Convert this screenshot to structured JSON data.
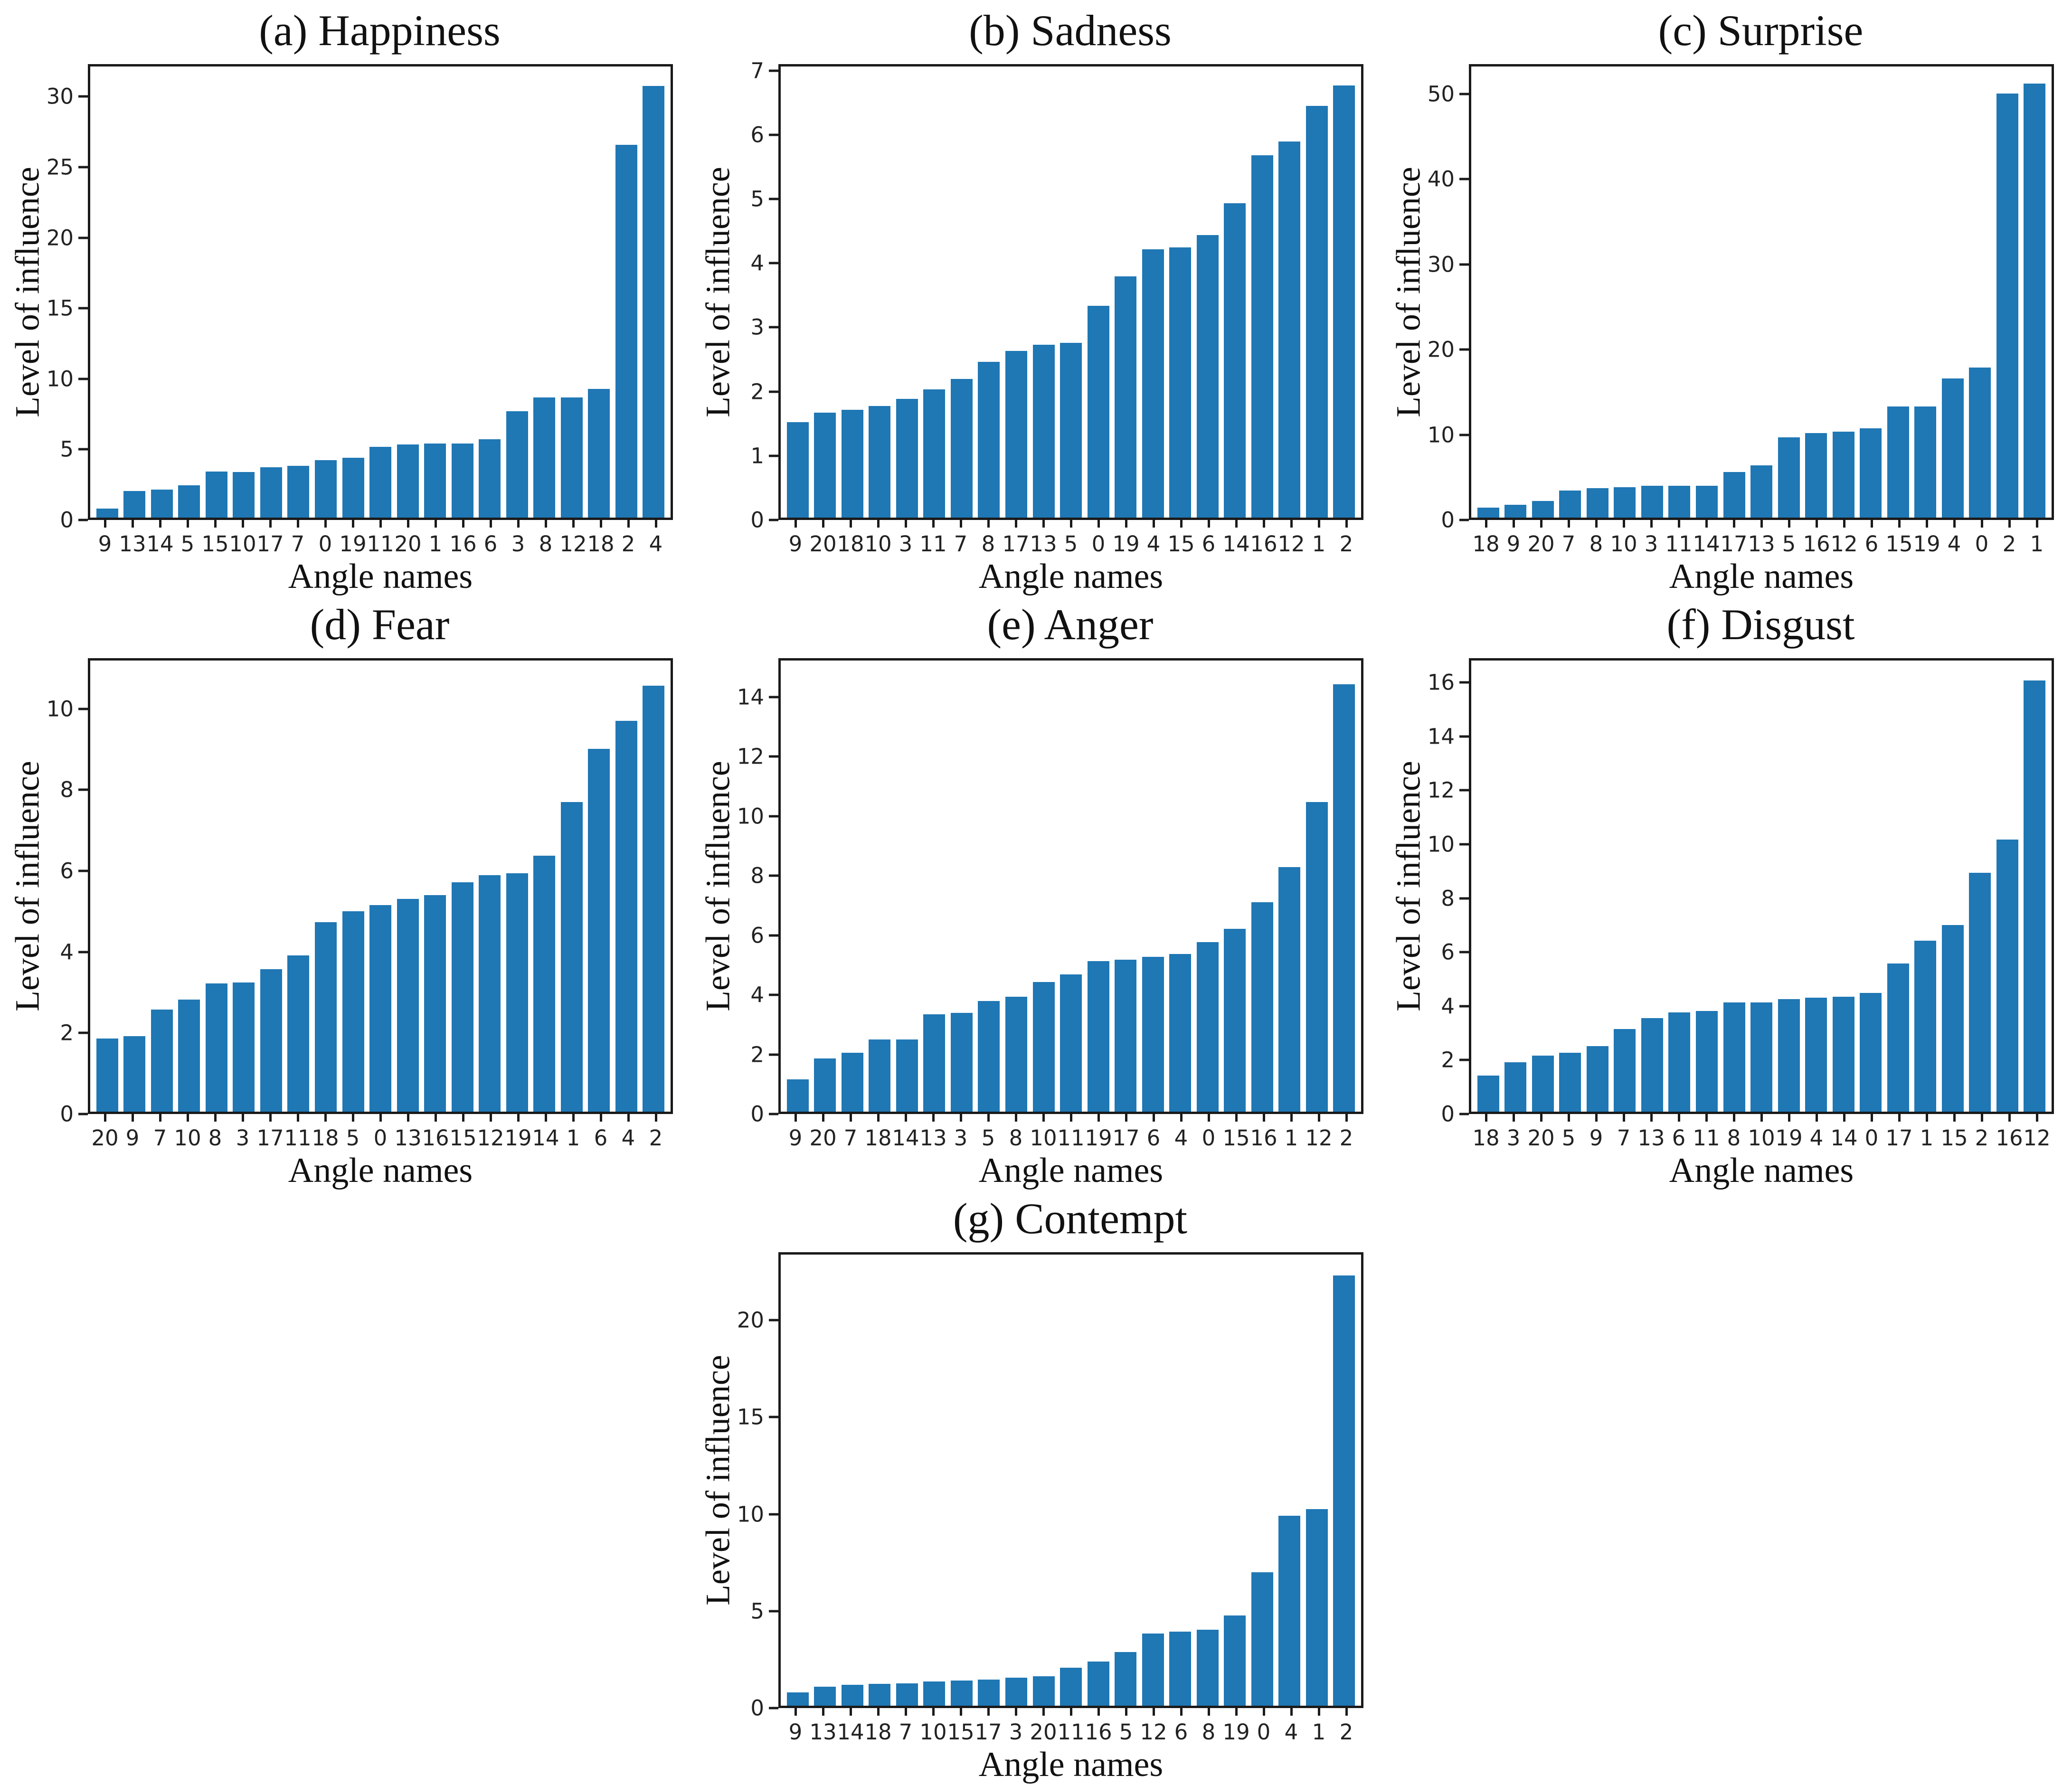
{
  "figure": {
    "description": "Seven sorted bar charts of level of influence per angle name for seven emotions",
    "bar_color": "#1f77b4",
    "axis_color": "#1a1a1a",
    "shared_xlabel": "Angle names",
    "shared_ylabel": "Level of influence"
  },
  "chart_data": [
    {
      "type": "bar",
      "panel": "a",
      "title": "(a) Happiness",
      "xlabel": "Angle names",
      "ylabel": "Level of influence",
      "categories": [
        "9",
        "13",
        "14",
        "5",
        "15",
        "10",
        "17",
        "7",
        "0",
        "19",
        "11",
        "20",
        "1",
        "16",
        "6",
        "3",
        "8",
        "12",
        "18",
        "2",
        "4"
      ],
      "values": [
        0.65,
        1.9,
        2.0,
        2.3,
        3.3,
        3.25,
        3.6,
        3.7,
        4.1,
        4.3,
        5.05,
        5.25,
        5.3,
        5.3,
        5.6,
        7.6,
        8.6,
        8.6,
        9.2,
        26.7,
        30.9
      ],
      "yticks": [
        0,
        5,
        10,
        15,
        20,
        25,
        30
      ],
      "ylim": [
        0,
        32.3
      ],
      "grid": false,
      "legend": null
    },
    {
      "type": "bar",
      "panel": "b",
      "title": "(b) Sadness",
      "xlabel": "Angle names",
      "ylabel": "Level of influence",
      "categories": [
        "9",
        "20",
        "18",
        "10",
        "3",
        "11",
        "7",
        "8",
        "17",
        "13",
        "5",
        "0",
        "19",
        "4",
        "15",
        "6",
        "14",
        "16",
        "12",
        "1",
        "2"
      ],
      "values": [
        1.5,
        1.65,
        1.7,
        1.76,
        1.87,
        2.02,
        2.18,
        2.45,
        2.62,
        2.72,
        2.75,
        3.33,
        3.8,
        4.22,
        4.25,
        4.45,
        4.95,
        5.7,
        5.92,
        6.48,
        6.8
      ],
      "yticks": [
        0,
        1,
        2,
        3,
        4,
        5,
        6,
        7
      ],
      "ylim": [
        0,
        7.1
      ],
      "grid": false,
      "legend": null
    },
    {
      "type": "bar",
      "panel": "c",
      "title": "(c) Surprise",
      "xlabel": "Angle names",
      "ylabel": "Level of influence",
      "categories": [
        "18",
        "9",
        "20",
        "7",
        "8",
        "10",
        "3",
        "11",
        "14",
        "17",
        "13",
        "5",
        "16",
        "12",
        "6",
        "15",
        "19",
        "4",
        "0",
        "2",
        "1"
      ],
      "values": [
        1.2,
        1.5,
        2.0,
        3.2,
        3.5,
        3.6,
        3.8,
        3.8,
        3.8,
        5.4,
        6.2,
        9.5,
        10.0,
        10.2,
        10.6,
        13.2,
        13.2,
        16.5,
        17.8,
        50.3,
        51.5
      ],
      "yticks": [
        0,
        10,
        20,
        30,
        40,
        50
      ],
      "ylim": [
        0,
        53.5
      ],
      "grid": false,
      "legend": null
    },
    {
      "type": "bar",
      "panel": "d",
      "title": "(d) Fear",
      "xlabel": "Angle names",
      "ylabel": "Level of influence",
      "categories": [
        "20",
        "9",
        "7",
        "10",
        "8",
        "3",
        "17",
        "11",
        "18",
        "5",
        "0",
        "13",
        "16",
        "15",
        "12",
        "19",
        "14",
        "1",
        "6",
        "4",
        "2"
      ],
      "values": [
        1.82,
        1.88,
        2.55,
        2.8,
        3.2,
        3.22,
        3.55,
        3.9,
        4.72,
        5.0,
        5.15,
        5.3,
        5.4,
        5.72,
        5.9,
        5.95,
        6.38,
        7.72,
        9.05,
        9.75,
        10.62
      ],
      "yticks": [
        0,
        2,
        4,
        6,
        8,
        10
      ],
      "ylim": [
        0,
        11.25
      ],
      "grid": false,
      "legend": null
    },
    {
      "type": "bar",
      "panel": "e",
      "title": "(e) Anger",
      "xlabel": "Angle names",
      "ylabel": "Level of influence",
      "categories": [
        "9",
        "20",
        "7",
        "18",
        "14",
        "13",
        "3",
        "5",
        "8",
        "10",
        "11",
        "19",
        "17",
        "6",
        "4",
        "0",
        "15",
        "16",
        "1",
        "12",
        "2"
      ],
      "values": [
        1.1,
        1.8,
        2.0,
        2.45,
        2.45,
        3.3,
        3.35,
        3.75,
        3.9,
        4.4,
        4.65,
        5.1,
        5.15,
        5.25,
        5.35,
        5.75,
        6.2,
        7.1,
        8.3,
        10.5,
        14.5
      ],
      "yticks": [
        0,
        2,
        4,
        6,
        8,
        10,
        12,
        14
      ],
      "ylim": [
        0,
        15.3
      ],
      "grid": false,
      "legend": null
    },
    {
      "type": "bar",
      "panel": "f",
      "title": "(f) Disgust",
      "xlabel": "Angle names",
      "ylabel": "Level of influence",
      "categories": [
        "18",
        "3",
        "20",
        "5",
        "9",
        "7",
        "13",
        "6",
        "11",
        "8",
        "10",
        "19",
        "4",
        "14",
        "0",
        "17",
        "1",
        "15",
        "2",
        "16",
        "12"
      ],
      "values": [
        1.35,
        1.85,
        2.1,
        2.2,
        2.45,
        3.1,
        3.5,
        3.72,
        3.78,
        4.1,
        4.1,
        4.22,
        4.27,
        4.3,
        4.45,
        5.55,
        6.4,
        7.0,
        8.95,
        10.2,
        16.15
      ],
      "yticks": [
        0,
        2,
        4,
        6,
        8,
        10,
        12,
        14,
        16
      ],
      "ylim": [
        0,
        16.9
      ],
      "grid": false,
      "legend": null
    },
    {
      "type": "bar",
      "panel": "g",
      "title": "(g) Contempt",
      "xlabel": "Angle names",
      "ylabel": "Level of influence",
      "categories": [
        "9",
        "13",
        "14",
        "18",
        "7",
        "10",
        "15",
        "17",
        "3",
        "20",
        "11",
        "16",
        "5",
        "12",
        "6",
        "8",
        "19",
        "0",
        "4",
        "1",
        "2"
      ],
      "values": [
        0.7,
        1.0,
        1.08,
        1.15,
        1.17,
        1.27,
        1.3,
        1.37,
        1.47,
        1.53,
        1.97,
        2.3,
        2.8,
        3.75,
        3.85,
        3.95,
        4.7,
        6.95,
        9.9,
        10.25,
        22.4
      ],
      "yticks": [
        0,
        5,
        10,
        15,
        20
      ],
      "ylim": [
        0,
        23.5
      ],
      "grid": false,
      "legend": null
    }
  ]
}
